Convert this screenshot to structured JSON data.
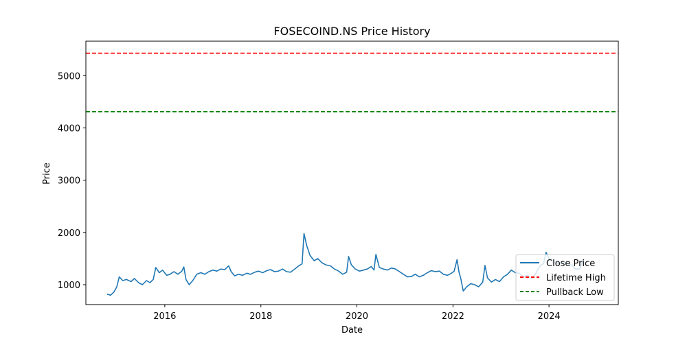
{
  "chart_data": {
    "type": "line",
    "title": "FOSECOIND.NS Price History",
    "xlabel": "Date",
    "ylabel": "Price",
    "xlim": [
      "2014-05-11",
      "2025-06-11"
    ],
    "ylim": [
      620,
      5660
    ],
    "x_ticks": [
      "2016",
      "2018",
      "2020",
      "2022",
      "2024"
    ],
    "y_ticks": [
      1000,
      2000,
      3000,
      4000,
      5000
    ],
    "grid": false,
    "legend_position": "lower-right",
    "series": [
      {
        "name": "Close Price",
        "color": "#1f77b4",
        "style": "solid",
        "points": [
          [
            "2014-10-20",
            820
          ],
          [
            "2014-11-15",
            800
          ],
          [
            "2014-12-10",
            860
          ],
          [
            "2015-01-01",
            960
          ],
          [
            "2015-01-20",
            1150
          ],
          [
            "2015-02-15",
            1080
          ],
          [
            "2015-03-15",
            1100
          ],
          [
            "2015-04-20",
            1060
          ],
          [
            "2015-05-15",
            1120
          ],
          [
            "2015-06-15",
            1040
          ],
          [
            "2015-07-15",
            1000
          ],
          [
            "2015-08-15",
            1080
          ],
          [
            "2015-09-10",
            1040
          ],
          [
            "2015-10-05",
            1100
          ],
          [
            "2015-10-25",
            1330
          ],
          [
            "2015-11-20",
            1230
          ],
          [
            "2015-12-15",
            1280
          ],
          [
            "2016-01-15",
            1180
          ],
          [
            "2016-02-10",
            1200
          ],
          [
            "2016-03-10",
            1250
          ],
          [
            "2016-04-10",
            1200
          ],
          [
            "2016-05-10",
            1260
          ],
          [
            "2016-05-25",
            1340
          ],
          [
            "2016-06-10",
            1100
          ],
          [
            "2016-07-05",
            1000
          ],
          [
            "2016-08-01",
            1080
          ],
          [
            "2016-09-01",
            1200
          ],
          [
            "2016-10-01",
            1230
          ],
          [
            "2016-11-01",
            1200
          ],
          [
            "2016-12-01",
            1250
          ],
          [
            "2017-01-01",
            1280
          ],
          [
            "2017-02-01",
            1260
          ],
          [
            "2017-03-01",
            1300
          ],
          [
            "2017-04-01",
            1290
          ],
          [
            "2017-05-01",
            1360
          ],
          [
            "2017-05-20",
            1250
          ],
          [
            "2017-06-15",
            1170
          ],
          [
            "2017-07-15",
            1200
          ],
          [
            "2017-08-15",
            1180
          ],
          [
            "2017-09-15",
            1220
          ],
          [
            "2017-10-15",
            1200
          ],
          [
            "2017-11-15",
            1240
          ],
          [
            "2017-12-15",
            1260
          ],
          [
            "2018-01-15",
            1230
          ],
          [
            "2018-02-15",
            1270
          ],
          [
            "2018-03-15",
            1290
          ],
          [
            "2018-04-15",
            1250
          ],
          [
            "2018-05-15",
            1260
          ],
          [
            "2018-06-15",
            1300
          ],
          [
            "2018-07-15",
            1250
          ],
          [
            "2018-08-15",
            1240
          ],
          [
            "2018-09-15",
            1300
          ],
          [
            "2018-10-15",
            1360
          ],
          [
            "2018-11-10",
            1400
          ],
          [
            "2018-11-25",
            1980
          ],
          [
            "2018-12-15",
            1750
          ],
          [
            "2019-01-10",
            1560
          ],
          [
            "2019-02-10",
            1460
          ],
          [
            "2019-03-10",
            1500
          ],
          [
            "2019-04-10",
            1420
          ],
          [
            "2019-05-10",
            1380
          ],
          [
            "2019-06-15",
            1360
          ],
          [
            "2019-07-15",
            1300
          ],
          [
            "2019-08-15",
            1260
          ],
          [
            "2019-09-15",
            1200
          ],
          [
            "2019-10-15",
            1240
          ],
          [
            "2019-10-30",
            1540
          ],
          [
            "2019-11-20",
            1380
          ],
          [
            "2019-12-20",
            1300
          ],
          [
            "2020-01-20",
            1260
          ],
          [
            "2020-02-20",
            1280
          ],
          [
            "2020-03-20",
            1300
          ],
          [
            "2020-04-20",
            1350
          ],
          [
            "2020-05-10",
            1280
          ],
          [
            "2020-05-25",
            1580
          ],
          [
            "2020-06-20",
            1330
          ],
          [
            "2020-07-20",
            1300
          ],
          [
            "2020-08-20",
            1280
          ],
          [
            "2020-09-20",
            1320
          ],
          [
            "2020-10-20",
            1300
          ],
          [
            "2020-11-20",
            1250
          ],
          [
            "2020-12-20",
            1200
          ],
          [
            "2021-01-20",
            1150
          ],
          [
            "2021-02-20",
            1160
          ],
          [
            "2021-03-20",
            1200
          ],
          [
            "2021-04-20",
            1150
          ],
          [
            "2021-05-20",
            1180
          ],
          [
            "2021-06-20",
            1230
          ],
          [
            "2021-07-20",
            1270
          ],
          [
            "2021-08-20",
            1250
          ],
          [
            "2021-09-20",
            1260
          ],
          [
            "2021-10-20",
            1200
          ],
          [
            "2021-11-20",
            1180
          ],
          [
            "2021-12-20",
            1220
          ],
          [
            "2022-01-10",
            1260
          ],
          [
            "2022-02-01",
            1480
          ],
          [
            "2022-02-15",
            1250
          ],
          [
            "2022-03-01",
            1120
          ],
          [
            "2022-03-20",
            880
          ],
          [
            "2022-04-15",
            960
          ],
          [
            "2022-05-15",
            1020
          ],
          [
            "2022-06-15",
            1000
          ],
          [
            "2022-07-15",
            960
          ],
          [
            "2022-08-15",
            1050
          ],
          [
            "2022-09-01",
            1370
          ],
          [
            "2022-09-20",
            1130
          ],
          [
            "2022-10-20",
            1050
          ],
          [
            "2022-11-20",
            1100
          ],
          [
            "2022-12-20",
            1060
          ],
          [
            "2023-01-20",
            1150
          ],
          [
            "2023-02-20",
            1200
          ],
          [
            "2023-03-20",
            1280
          ],
          [
            "2023-04-20",
            1230
          ],
          [
            "2023-05-20",
            1220
          ],
          [
            "2023-06-20",
            1150
          ],
          [
            "2023-07-20",
            1180
          ],
          [
            "2023-08-20",
            1120
          ],
          [
            "2023-09-20",
            1200
          ],
          [
            "2023-10-10",
            1300
          ],
          [
            "2023-11-01",
            1380
          ],
          [
            "2023-11-20",
            1400
          ],
          [
            "2023-12-10",
            1620
          ],
          [
            "2024-01-01",
            1500
          ],
          [
            "2024-01-25",
            1460
          ],
          [
            "2024-02-20",
            1420
          ],
          [
            "2024-03-20",
            1400
          ],
          [
            "2024-04-20",
            1440
          ],
          [
            "2024-05-20",
            1400
          ],
          [
            "2024-06-20",
            1380
          ],
          [
            "2024-07-20",
            1300
          ],
          [
            "2024-08-20",
            1300
          ],
          [
            "2024-09-20",
            1500
          ]
        ]
      },
      {
        "name": "Lifetime High",
        "color": "#ff0000",
        "style": "dashed",
        "y": 5430
      },
      {
        "name": "Pullback Low",
        "color": "#008000",
        "style": "dashed",
        "y": 4310
      }
    ]
  }
}
